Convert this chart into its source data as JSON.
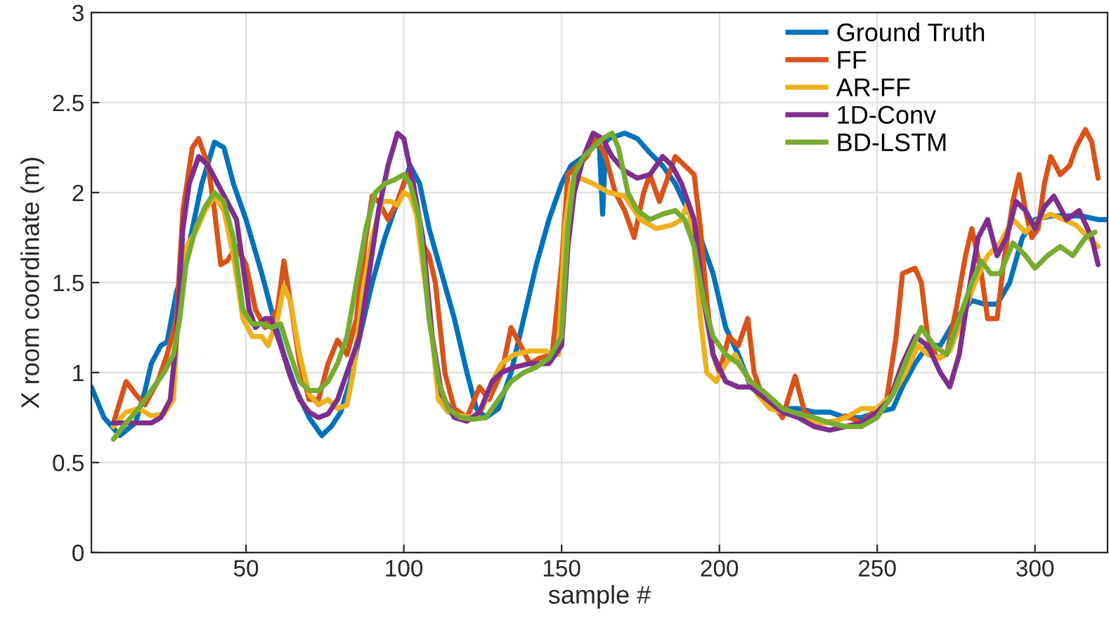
{
  "chart_data": {
    "type": "line",
    "xlabel": "sample #",
    "ylabel": "X room coordinate (m)",
    "xlim": [
      1,
      323
    ],
    "ylim": [
      0,
      3
    ],
    "xticks": [
      50,
      100,
      150,
      200,
      250,
      300
    ],
    "yticks": [
      0,
      0.5,
      1,
      1.5,
      2,
      2.5,
      3
    ],
    "grid": true,
    "legend": "top right",
    "line_style": "solid",
    "marker": "none",
    "series": [
      {
        "name": "Ground Truth",
        "color": "#0072bd",
        "x": [
          1,
          5,
          10,
          15,
          18,
          20,
          23,
          25,
          28,
          30,
          33,
          36,
          40,
          43,
          46,
          50,
          55,
          58,
          62,
          66,
          70,
          74,
          77,
          80,
          83,
          86,
          90,
          94,
          98,
          102,
          105,
          108,
          112,
          116,
          120,
          123,
          126,
          130,
          134,
          138,
          142,
          146,
          150,
          153,
          157,
          160,
          162,
          163,
          164,
          165,
          170,
          174,
          178,
          182,
          186,
          190,
          194,
          198,
          202,
          206,
          210,
          215,
          220,
          225,
          230,
          235,
          240,
          245,
          250,
          255,
          258,
          262,
          266,
          270,
          275,
          280,
          284,
          288,
          292,
          296,
          300,
          305,
          310,
          315,
          320,
          323
        ],
        "values": [
          0.92,
          0.75,
          0.65,
          0.72,
          0.9,
          1.05,
          1.15,
          1.17,
          1.45,
          1.55,
          1.8,
          2.05,
          2.28,
          2.25,
          2.05,
          1.85,
          1.55,
          1.35,
          1.1,
          0.9,
          0.75,
          0.65,
          0.7,
          0.78,
          0.95,
          1.2,
          1.5,
          1.75,
          1.95,
          2.15,
          2.05,
          1.8,
          1.55,
          1.3,
          1.0,
          0.8,
          0.75,
          0.8,
          1.0,
          1.3,
          1.6,
          1.85,
          2.05,
          2.15,
          2.2,
          2.3,
          2.25,
          1.88,
          2.28,
          2.3,
          2.33,
          2.3,
          2.22,
          2.15,
          2.05,
          1.9,
          1.75,
          1.55,
          1.25,
          1.1,
          0.92,
          0.85,
          0.8,
          0.8,
          0.78,
          0.78,
          0.75,
          0.75,
          0.78,
          0.8,
          0.92,
          1.05,
          1.15,
          1.15,
          1.3,
          1.4,
          1.38,
          1.38,
          1.5,
          1.75,
          1.85,
          1.87,
          1.87,
          1.87,
          1.85,
          1.85
        ]
      },
      {
        "name": "FF",
        "color": "#d95319",
        "x": [
          8,
          12,
          15,
          18,
          22,
          25,
          28,
          30,
          33,
          35,
          38,
          40,
          42,
          44,
          47,
          50,
          53,
          56,
          60,
          62,
          64,
          67,
          70,
          73,
          76,
          79,
          82,
          85,
          88,
          90,
          92,
          95,
          98,
          101,
          103,
          105,
          108,
          110,
          113,
          116,
          120,
          124,
          127,
          131,
          134,
          137,
          140,
          143,
          147,
          150,
          152,
          155,
          158,
          161,
          164,
          167,
          170,
          173,
          176,
          178,
          181,
          184,
          186,
          189,
          192,
          194,
          196,
          198,
          200,
          203,
          206,
          209,
          211,
          214,
          218,
          220,
          224,
          227,
          232,
          237,
          240,
          245,
          250,
          253,
          256,
          258,
          262,
          264,
          266,
          269,
          272,
          275,
          278,
          280,
          283,
          285,
          288,
          290,
          293,
          295,
          297,
          299,
          301,
          303,
          305,
          308,
          311,
          313,
          316,
          318,
          320
        ],
        "values": [
          0.72,
          0.95,
          0.88,
          0.82,
          0.95,
          1.1,
          1.3,
          1.9,
          2.25,
          2.3,
          2.15,
          1.9,
          1.6,
          1.62,
          1.7,
          1.6,
          1.35,
          1.25,
          1.35,
          1.62,
          1.4,
          1.05,
          0.85,
          0.85,
          1.05,
          1.18,
          1.1,
          1.3,
          1.75,
          1.98,
          1.95,
          1.85,
          1.95,
          2.1,
          2.05,
          1.75,
          1.65,
          1.5,
          1.0,
          0.8,
          0.75,
          0.92,
          0.85,
          1.0,
          1.25,
          1.15,
          1.05,
          1.08,
          1.1,
          1.6,
          2.1,
          2.15,
          2.2,
          2.3,
          2.2,
          2.0,
          1.9,
          1.75,
          2.0,
          2.1,
          1.95,
          2.1,
          2.2,
          2.15,
          2.1,
          1.8,
          1.4,
          1.1,
          1.0,
          1.2,
          1.15,
          1.3,
          1.0,
          0.85,
          0.8,
          0.75,
          0.98,
          0.78,
          0.72,
          0.73,
          0.76,
          0.72,
          0.8,
          0.85,
          1.2,
          1.55,
          1.58,
          1.5,
          1.2,
          1.08,
          1.1,
          1.35,
          1.65,
          1.8,
          1.55,
          1.3,
          1.3,
          1.6,
          1.95,
          2.1,
          1.9,
          1.75,
          1.8,
          2.05,
          2.2,
          2.1,
          2.15,
          2.25,
          2.35,
          2.28,
          2.08
        ]
      },
      {
        "name": "AR-FF",
        "color": "#edb120",
        "x": [
          8,
          12,
          16,
          20,
          24,
          27,
          29,
          31,
          34,
          37,
          40,
          43,
          46,
          49,
          52,
          55,
          57,
          60,
          62,
          64,
          67,
          70,
          73,
          76,
          79,
          82,
          84,
          87,
          90,
          93,
          96,
          98,
          100,
          102,
          104,
          106,
          109,
          111,
          114,
          118,
          122,
          125,
          128,
          131,
          135,
          140,
          145,
          149,
          151,
          153,
          156,
          160,
          165,
          170,
          175,
          180,
          185,
          188,
          190,
          192,
          194,
          196,
          199,
          202,
          205,
          208,
          212,
          216,
          220,
          225,
          230,
          235,
          240,
          245,
          250,
          255,
          259,
          263,
          266,
          270,
          273,
          277,
          281,
          285,
          289,
          293,
          297,
          301,
          305,
          309,
          313,
          317,
          320
        ],
        "values": [
          0.7,
          0.78,
          0.8,
          0.76,
          0.77,
          0.85,
          1.5,
          1.7,
          1.78,
          1.9,
          1.98,
          1.9,
          1.65,
          1.3,
          1.2,
          1.2,
          1.15,
          1.3,
          1.48,
          1.4,
          1.1,
          0.88,
          0.82,
          0.85,
          0.8,
          0.82,
          1.0,
          1.45,
          1.75,
          1.95,
          1.95,
          1.93,
          2.0,
          1.98,
          1.88,
          1.6,
          1.2,
          0.85,
          0.78,
          0.76,
          0.75,
          0.8,
          0.95,
          1.05,
          1.1,
          1.12,
          1.12,
          1.1,
          1.8,
          2.05,
          2.08,
          2.05,
          2.0,
          1.98,
          1.85,
          1.8,
          1.82,
          1.85,
          1.95,
          1.7,
          1.3,
          1.0,
          0.95,
          1.05,
          1.1,
          1.0,
          0.88,
          0.8,
          0.78,
          0.76,
          0.72,
          0.72,
          0.75,
          0.8,
          0.8,
          0.88,
          1.0,
          1.15,
          1.1,
          1.08,
          1.12,
          1.3,
          1.5,
          1.65,
          1.72,
          1.85,
          1.78,
          1.85,
          1.88,
          1.85,
          1.82,
          1.75,
          1.7
        ]
      },
      {
        "name": "1D-Conv",
        "color": "#7e2f8e",
        "x": [
          8,
          12,
          16,
          20,
          23,
          26,
          28,
          30,
          32,
          35,
          38,
          41,
          44,
          47,
          49,
          51,
          53,
          56,
          58,
          61,
          64,
          67,
          70,
          73,
          76,
          79,
          82,
          86,
          89,
          92,
          95,
          98,
          100,
          103,
          106,
          109,
          112,
          116,
          120,
          124,
          128,
          131,
          135,
          140,
          146,
          150,
          152,
          154,
          157,
          160,
          163,
          166,
          170,
          174,
          178,
          182,
          185,
          188,
          192,
          195,
          198,
          202,
          206,
          210,
          215,
          220,
          225,
          230,
          235,
          240,
          245,
          250,
          254,
          258,
          262,
          266,
          270,
          273,
          276,
          279,
          282,
          285,
          288,
          291,
          294,
          297,
          300,
          303,
          306,
          310,
          314,
          318,
          320
        ],
        "values": [
          0.72,
          0.72,
          0.72,
          0.72,
          0.75,
          0.85,
          1.2,
          1.8,
          2.05,
          2.2,
          2.15,
          2.05,
          1.95,
          1.85,
          1.6,
          1.35,
          1.25,
          1.3,
          1.3,
          1.15,
          0.98,
          0.85,
          0.78,
          0.75,
          0.77,
          0.85,
          1.0,
          1.2,
          1.55,
          1.9,
          2.15,
          2.33,
          2.3,
          2.05,
          1.75,
          1.2,
          0.88,
          0.75,
          0.73,
          0.78,
          0.95,
          1.0,
          1.03,
          1.05,
          1.05,
          1.15,
          1.7,
          2.0,
          2.2,
          2.33,
          2.3,
          2.2,
          2.12,
          2.08,
          2.1,
          2.2,
          2.15,
          2.05,
          1.85,
          1.4,
          1.1,
          0.95,
          0.92,
          0.92,
          0.85,
          0.78,
          0.75,
          0.7,
          0.68,
          0.7,
          0.72,
          0.78,
          0.85,
          1.05,
          1.2,
          1.15,
          1.0,
          0.92,
          1.1,
          1.45,
          1.75,
          1.85,
          1.65,
          1.75,
          1.95,
          1.9,
          1.8,
          1.92,
          1.98,
          1.85,
          1.9,
          1.75,
          1.6
        ]
      },
      {
        "name": "BD-LSTM",
        "color": "#77ac30",
        "x": [
          8,
          12,
          16,
          20,
          24,
          27,
          29,
          31,
          34,
          37,
          40,
          43,
          46,
          49,
          52,
          55,
          58,
          61,
          64,
          67,
          70,
          73,
          76,
          79,
          82,
          85,
          88,
          91,
          94,
          97,
          100,
          102,
          105,
          108,
          111,
          114,
          118,
          122,
          126,
          130,
          134,
          138,
          142,
          146,
          150,
          152,
          154,
          157,
          160,
          163,
          166,
          168,
          171,
          174,
          178,
          182,
          186,
          189,
          192,
          195,
          198,
          202,
          206,
          210,
          215,
          220,
          225,
          230,
          235,
          240,
          245,
          250,
          255,
          260,
          264,
          268,
          272,
          276,
          280,
          283,
          286,
          289,
          293,
          297,
          300,
          304,
          308,
          312,
          316,
          319
        ],
        "values": [
          0.63,
          0.72,
          0.8,
          0.9,
          1.0,
          1.1,
          1.3,
          1.6,
          1.8,
          1.92,
          2.0,
          1.95,
          1.75,
          1.35,
          1.27,
          1.27,
          1.25,
          1.27,
          1.1,
          0.95,
          0.9,
          0.9,
          0.95,
          1.05,
          1.2,
          1.5,
          1.8,
          2.0,
          2.05,
          2.07,
          2.1,
          2.05,
          1.85,
          1.3,
          0.95,
          0.8,
          0.75,
          0.74,
          0.75,
          0.85,
          0.95,
          1.0,
          1.03,
          1.08,
          1.2,
          1.8,
          2.1,
          2.2,
          2.25,
          2.3,
          2.33,
          2.25,
          2.0,
          1.9,
          1.85,
          1.88,
          1.9,
          1.85,
          1.7,
          1.4,
          1.2,
          1.1,
          1.05,
          0.95,
          0.88,
          0.8,
          0.77,
          0.75,
          0.72,
          0.7,
          0.7,
          0.75,
          0.88,
          1.1,
          1.25,
          1.15,
          1.1,
          1.3,
          1.5,
          1.62,
          1.55,
          1.55,
          1.72,
          1.65,
          1.58,
          1.65,
          1.7,
          1.65,
          1.75,
          1.78
        ]
      }
    ]
  }
}
